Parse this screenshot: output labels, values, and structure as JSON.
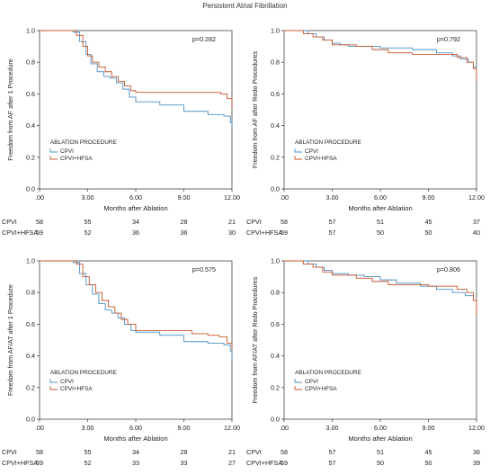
{
  "title": "Persistent Atrial Fibrillation",
  "colors": {
    "CPVI": "#4a90c4",
    "CPVI+HFSA": "#c8552c",
    "axis": "#444444"
  },
  "chart_data": [
    {
      "type": "line",
      "p_value": "p=0.282",
      "xlabel": "Months after Ablation",
      "ylabel": "Freedom from AF after 1 Procedure",
      "xticks": [
        ".00",
        "3.00",
        "6.00",
        "9.00",
        "12.00"
      ],
      "yticks": [
        "0.0",
        "0.2",
        "0.4",
        "0.6",
        "0.8",
        "1.0"
      ],
      "xlim": [
        0,
        12
      ],
      "ylim": [
        0,
        1
      ],
      "legend_title": "ABLATION PROCEDURE",
      "legend_position": "lower-left",
      "series": [
        {
          "name": "CPVI",
          "x": [
            0,
            2.1,
            2.5,
            2.9,
            3.2,
            3.6,
            4.0,
            4.4,
            4.8,
            5.2,
            5.6,
            6.0,
            7.5,
            9.0,
            10.5,
            11.5,
            11.9,
            12.0
          ],
          "y": [
            1.0,
            0.99,
            0.93,
            0.85,
            0.79,
            0.74,
            0.71,
            0.7,
            0.67,
            0.63,
            0.58,
            0.55,
            0.53,
            0.49,
            0.47,
            0.46,
            0.42,
            0.39
          ]
        },
        {
          "name": "CPVI+HFSA",
          "x": [
            0,
            2.3,
            2.7,
            3.0,
            3.3,
            3.7,
            4.1,
            4.5,
            4.9,
            5.3,
            5.7,
            6.0,
            8.0,
            10.0,
            11.3,
            11.7,
            12.0
          ],
          "y": [
            1.0,
            0.97,
            0.9,
            0.84,
            0.8,
            0.77,
            0.74,
            0.71,
            0.68,
            0.65,
            0.62,
            0.61,
            0.61,
            0.61,
            0.6,
            0.57,
            0.51
          ]
        }
      ],
      "at_risk": [
        {
          "label": "CPVI",
          "values": [
            "58",
            "55",
            "34",
            "28",
            "21"
          ]
        },
        {
          "label": "CPVI+HFSA",
          "values": [
            "59",
            "52",
            "36",
            "36",
            "30"
          ]
        }
      ]
    },
    {
      "type": "line",
      "p_value": "p=0.792",
      "xlabel": "Months after Ablation",
      "ylabel": "Freedom from AF after Redo Procedures",
      "xticks": [
        ".00",
        "3.00",
        "6.00",
        "9.00",
        "12.00"
      ],
      "yticks": [
        "0.0",
        "0.2",
        "0.4",
        "0.6",
        "0.8",
        "1.0"
      ],
      "xlim": [
        0,
        12
      ],
      "ylim": [
        0,
        1
      ],
      "legend_title": "ABLATION PROCEDURE",
      "legend_position": "lower-left",
      "series": [
        {
          "name": "CPVI",
          "x": [
            0,
            1.5,
            2.0,
            2.5,
            3.0,
            3.5,
            4.0,
            6.0,
            8.0,
            9.5,
            10.5,
            11.0,
            11.5,
            11.8,
            12.0
          ],
          "y": [
            1.0,
            0.98,
            0.96,
            0.94,
            0.92,
            0.91,
            0.9,
            0.89,
            0.88,
            0.86,
            0.84,
            0.82,
            0.8,
            0.77,
            0.7
          ]
        },
        {
          "name": "CPVI+HFSA",
          "x": [
            0,
            1.2,
            1.8,
            2.4,
            3.0,
            4.5,
            5.5,
            6.5,
            8.0,
            9.0,
            10.0,
            10.8,
            11.4,
            11.8,
            12.0
          ],
          "y": [
            1.0,
            0.98,
            0.96,
            0.94,
            0.91,
            0.9,
            0.88,
            0.86,
            0.85,
            0.85,
            0.85,
            0.83,
            0.8,
            0.76,
            0.68
          ]
        }
      ],
      "at_risk": [
        {
          "label": "CPVI",
          "values": [
            "58",
            "57",
            "51",
            "45",
            "37"
          ]
        },
        {
          "label": "CPVI+HFSA",
          "values": [
            "59",
            "57",
            "50",
            "50",
            "40"
          ]
        }
      ]
    },
    {
      "type": "line",
      "p_value": "p=0.575",
      "xlabel": "Months after Ablation",
      "ylabel": "Freedom from AF/AT after 1 Procedure",
      "xticks": [
        ".00",
        "3.00",
        "6.00",
        "9.00",
        "12.00"
      ],
      "yticks": [
        "0.0",
        "0.2",
        "0.4",
        "0.6",
        "0.8",
        "1.0"
      ],
      "xlim": [
        0,
        12
      ],
      "ylim": [
        0,
        1
      ],
      "legend_title": "ABLATION PROCEDURE",
      "legend_position": "lower-left",
      "series": [
        {
          "name": "CPVI",
          "x": [
            0,
            2.1,
            2.5,
            2.9,
            3.3,
            3.7,
            4.1,
            4.5,
            4.9,
            5.3,
            5.7,
            6.0,
            7.5,
            9.0,
            10.5,
            11.5,
            11.9,
            12.0
          ],
          "y": [
            1.0,
            0.99,
            0.92,
            0.85,
            0.79,
            0.73,
            0.69,
            0.67,
            0.64,
            0.6,
            0.56,
            0.55,
            0.53,
            0.49,
            0.48,
            0.47,
            0.43,
            0.38
          ]
        },
        {
          "name": "CPVI+HFSA",
          "x": [
            0,
            2.3,
            2.7,
            3.1,
            3.5,
            3.9,
            4.3,
            4.7,
            5.1,
            5.5,
            6.0,
            8.0,
            9.5,
            10.5,
            11.2,
            11.7,
            12.0
          ],
          "y": [
            1.0,
            0.98,
            0.9,
            0.85,
            0.8,
            0.75,
            0.71,
            0.67,
            0.63,
            0.6,
            0.56,
            0.56,
            0.54,
            0.53,
            0.52,
            0.48,
            0.44
          ]
        }
      ],
      "at_risk": [
        {
          "label": "CPVI",
          "values": [
            "58",
            "55",
            "34",
            "28",
            "21"
          ]
        },
        {
          "label": "CPVI+HFSA",
          "values": [
            "59",
            "52",
            "33",
            "33",
            "27"
          ]
        }
      ]
    },
    {
      "type": "line",
      "p_value": "p=0.806",
      "xlabel": "Months after Ablation",
      "ylabel": "Freedom from AF/AT after Redo Procedures",
      "xticks": [
        ".00",
        "3.00",
        "6.00",
        "9.00",
        "12.00"
      ],
      "yticks": [
        "0.0",
        "0.2",
        "0.4",
        "0.6",
        "0.8",
        "1.0"
      ],
      "xlim": [
        0,
        12
      ],
      "ylim": [
        0,
        1
      ],
      "legend_title": "ABLATION PROCEDURE",
      "legend_position": "lower-left",
      "series": [
        {
          "name": "CPVI",
          "x": [
            0,
            1.5,
            2.0,
            2.5,
            3.0,
            4.0,
            5.0,
            6.0,
            7.0,
            8.5,
            9.5,
            10.5,
            11.3,
            11.8,
            12.0
          ],
          "y": [
            1.0,
            0.98,
            0.96,
            0.94,
            0.92,
            0.91,
            0.9,
            0.88,
            0.86,
            0.84,
            0.82,
            0.8,
            0.78,
            0.75,
            0.72
          ]
        },
        {
          "name": "CPVI+HFSA",
          "x": [
            0,
            1.2,
            1.8,
            2.4,
            3.0,
            4.5,
            5.5,
            6.5,
            7.5,
            9.0,
            10.0,
            10.8,
            11.4,
            11.8,
            12.0
          ],
          "y": [
            1.0,
            0.98,
            0.96,
            0.93,
            0.91,
            0.89,
            0.87,
            0.85,
            0.85,
            0.84,
            0.84,
            0.82,
            0.8,
            0.75,
            0.65
          ]
        }
      ],
      "at_risk": [
        {
          "label": "CPVI",
          "values": [
            "58",
            "57",
            "51",
            "45",
            "36"
          ]
        },
        {
          "label": "CPVI+HFSA",
          "values": [
            "59",
            "57",
            "50",
            "50",
            "39"
          ]
        }
      ]
    }
  ]
}
